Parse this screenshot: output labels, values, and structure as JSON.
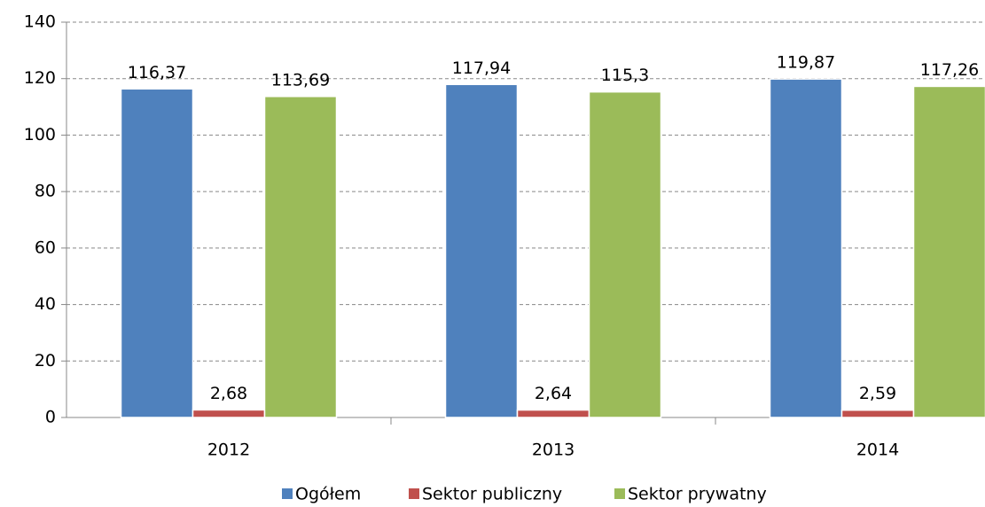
{
  "chart_data": {
    "type": "bar",
    "categories": [
      "2012",
      "2013",
      "2014"
    ],
    "series": [
      {
        "name": "Ogółem",
        "color": "#4f81bd",
        "values": [
          116.37,
          117.94,
          119.87
        ],
        "value_labels": [
          "116,37",
          "117,94",
          "119,87"
        ]
      },
      {
        "name": "Sektor publiczny",
        "color": "#c0504d",
        "values": [
          2.68,
          2.64,
          2.59
        ],
        "value_labels": [
          "2,68",
          "2,64",
          "2,59"
        ]
      },
      {
        "name": "Sektor prywatny",
        "color": "#9bbb59",
        "values": [
          113.69,
          115.3,
          117.26
        ],
        "value_labels": [
          "113,69",
          "115,3",
          "117,26"
        ]
      }
    ],
    "ylim": [
      0,
      140
    ],
    "yticks": [
      0,
      20,
      40,
      60,
      80,
      100,
      120,
      140
    ],
    "grid": true,
    "legend": "bottom"
  }
}
